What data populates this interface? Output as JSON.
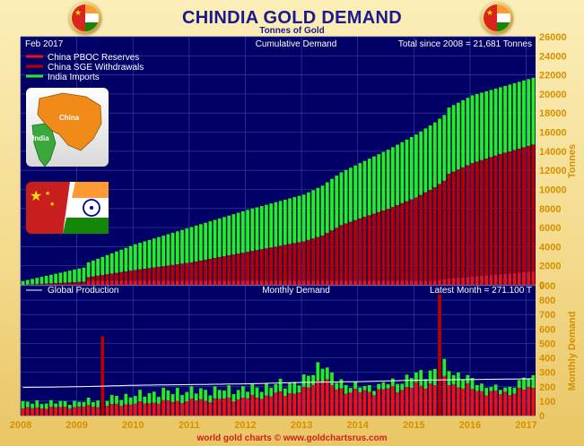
{
  "header": {
    "title": "CHINDIA GOLD DEMAND",
    "subtitle": "Tonnes of Gold",
    "footer": "world gold charts © www.goldchartsrus.com"
  },
  "colors": {
    "background": "#e9d28a",
    "plot_background": "#000066",
    "grid": "#3a3aa8",
    "pboc": "#ee1111",
    "sge": "#b80000",
    "india": "#22ee22",
    "production": "#ffffff",
    "axis_label": "#d49000",
    "title": "#1a1a8c"
  },
  "images": [
    {
      "name": "chindia-map-icon",
      "labels": [
        "China",
        "India"
      ]
    },
    {
      "name": "chindia-flags-icon"
    }
  ],
  "chart_data": [
    {
      "type": "bar",
      "stacked": true,
      "title": "Cumulative Demand",
      "date_label": "Feb 2017",
      "total_label": "Total since 2008 = 21,681 Tonnes",
      "ylabel": "Tonnes",
      "ylim": [
        0,
        26000
      ],
      "yticks": [
        0,
        2000,
        4000,
        6000,
        8000,
        10000,
        12000,
        14000,
        16000,
        18000,
        20000,
        22000,
        24000,
        26000
      ],
      "x_tick_labels": [
        "2008",
        "2009",
        "2010",
        "2011",
        "2012",
        "2013",
        "2014",
        "2015",
        "2016",
        "2017"
      ],
      "legend": [
        "China PBOC Reserves",
        "China SGE Withdrawals",
        "India Imports"
      ],
      "legend_position": "top-left",
      "grid": true,
      "months": 110,
      "series": [
        {
          "name": "China PBOC Reserves",
          "points": [
            [
              0,
              0
            ],
            [
              13,
              0
            ],
            [
              14,
              454
            ],
            [
              88,
              454
            ],
            [
              90,
              604
            ],
            [
              109,
              1400
            ]
          ]
        },
        {
          "name": "China SGE Withdrawals",
          "points": [
            [
              0,
              0
            ],
            [
              14,
              350
            ],
            [
              24,
              1100
            ],
            [
              36,
              1900
            ],
            [
              48,
              3000
            ],
            [
              60,
              4100
            ],
            [
              64,
              4700
            ],
            [
              68,
              5800
            ],
            [
              72,
              6500
            ],
            [
              78,
              7500
            ],
            [
              84,
              8700
            ],
            [
              90,
              10300
            ],
            [
              91,
              11000
            ],
            [
              96,
              11900
            ],
            [
              102,
              12600
            ],
            [
              109,
              13300
            ]
          ]
        },
        {
          "name": "India Imports",
          "points": [
            [
              0,
              400
            ],
            [
              12,
              1400
            ],
            [
              14,
              1550
            ],
            [
              24,
              2700
            ],
            [
              36,
              3700
            ],
            [
              48,
              4400
            ],
            [
              60,
              4900
            ],
            [
              66,
              5400
            ],
            [
              72,
              5800
            ],
            [
              84,
              6600
            ],
            [
              90,
              6900
            ],
            [
              96,
              7100
            ],
            [
              102,
              7000
            ],
            [
              109,
              7000
            ]
          ]
        }
      ]
    },
    {
      "type": "bar",
      "stacked": true,
      "title": "Monthly Demand",
      "latest_label": "Latest Month = 271.100 T",
      "ylabel": "Monthly Demand",
      "ylim": [
        0,
        900
      ],
      "yticks": [
        0,
        100,
        200,
        300,
        400,
        500,
        600,
        700,
        800,
        900
      ],
      "x_tick_labels": [
        "2008",
        "2009",
        "2010",
        "2011",
        "2012",
        "2013",
        "2014",
        "2015",
        "2016",
        "2017"
      ],
      "legend": [
        "Global Production"
      ],
      "legend_position": "top-left",
      "grid": true,
      "spikes": [
        {
          "month": 17,
          "value": 550
        },
        {
          "month": 89,
          "value": 840
        }
      ],
      "production": [
        [
          0,
          195
        ],
        [
          12,
          200
        ],
        [
          24,
          210
        ],
        [
          36,
          215
        ],
        [
          48,
          220
        ],
        [
          60,
          230
        ],
        [
          72,
          235
        ],
        [
          84,
          245
        ],
        [
          96,
          250
        ],
        [
          109,
          255
        ]
      ],
      "monthly_china": [
        [
          0,
          50
        ],
        [
          12,
          60
        ],
        [
          18,
          70
        ],
        [
          30,
          95
        ],
        [
          48,
          120
        ],
        [
          60,
          170
        ],
        [
          64,
          270
        ],
        [
          66,
          190
        ],
        [
          72,
          160
        ],
        [
          78,
          180
        ],
        [
          84,
          200
        ],
        [
          90,
          240
        ],
        [
          96,
          180
        ],
        [
          102,
          150
        ],
        [
          109,
          190
        ]
      ],
      "monthly_india": [
        [
          0,
          40
        ],
        [
          12,
          35
        ],
        [
          18,
          50
        ],
        [
          30,
          70
        ],
        [
          48,
          65
        ],
        [
          60,
          70
        ],
        [
          64,
          110
        ],
        [
          66,
          70
        ],
        [
          72,
          35
        ],
        [
          78,
          40
        ],
        [
          84,
          80
        ],
        [
          90,
          100
        ],
        [
          96,
          60
        ],
        [
          102,
          30
        ],
        [
          109,
          80
        ]
      ]
    }
  ]
}
